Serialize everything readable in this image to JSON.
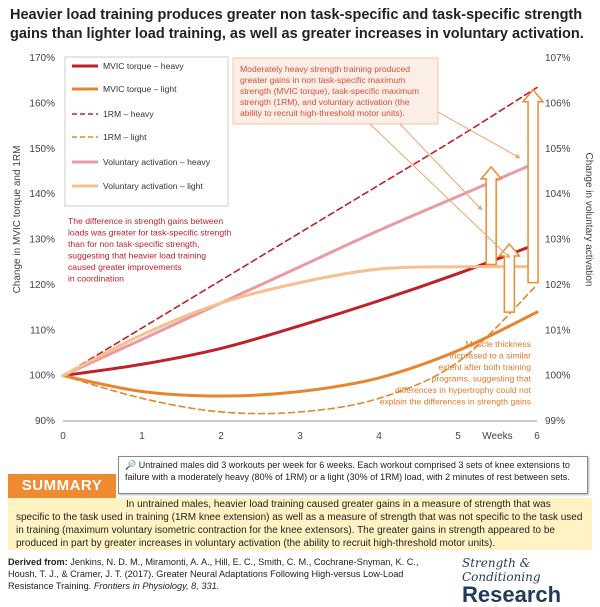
{
  "title": "Heavier load training produces greater non task-specific and task-specific strength gains than lighter load training, as well as greater increases in voluntary activation.",
  "chart_data": {
    "type": "line",
    "x_ticks": [
      "0",
      "1",
      "2",
      "3",
      "4",
      "5",
      "6"
    ],
    "xlabel_weeks": "Weeks",
    "y_left_label": "Change in MVIC torque and 1RM",
    "y_left_ticks": [
      "90%",
      "100%",
      "110%",
      "120%",
      "130%",
      "140%",
      "150%",
      "160%",
      "170%"
    ],
    "y_left_range": [
      90,
      170
    ],
    "y_right_label": "Change in voluntary activation",
    "y_right_ticks": [
      "99%",
      "100%",
      "101%",
      "102%",
      "103%",
      "104%",
      "105%",
      "106%",
      "107%"
    ],
    "y_right_range": [
      99,
      107
    ],
    "x_range": [
      0,
      6
    ],
    "series": [
      {
        "name": "MVIC torque – heavy",
        "color": "#c0202a",
        "dash": "solid",
        "axis": "left",
        "points": [
          [
            0,
            100
          ],
          [
            1,
            102.5
          ],
          [
            2,
            106
          ],
          [
            3,
            111
          ],
          [
            4,
            116.5
          ],
          [
            5,
            122.5
          ],
          [
            6,
            129
          ]
        ]
      },
      {
        "name": "MVIC torque – light",
        "color": "#e8852c",
        "dash": "solid",
        "axis": "left",
        "points": [
          [
            0,
            100
          ],
          [
            1,
            96.5
          ],
          [
            2,
            95.5
          ],
          [
            3,
            96.5
          ],
          [
            4,
            99.5
          ],
          [
            5,
            105.5
          ],
          [
            6,
            114
          ]
        ]
      },
      {
        "name": "1RM – heavy",
        "color": "#c0202a",
        "dash": "dashed",
        "axis": "left",
        "points": [
          [
            0,
            100
          ],
          [
            1,
            110.5
          ],
          [
            2,
            121
          ],
          [
            3,
            131.5
          ],
          [
            4,
            142
          ],
          [
            5,
            152.5
          ],
          [
            6,
            163.5
          ]
        ]
      },
      {
        "name": "1RM – light",
        "color": "#e8852c",
        "dash": "dashed",
        "axis": "left",
        "points": [
          [
            0,
            100
          ],
          [
            1,
            95
          ],
          [
            2,
            92
          ],
          [
            3,
            92
          ],
          [
            4,
            95
          ],
          [
            5,
            103
          ],
          [
            6,
            120
          ]
        ]
      },
      {
        "name": "Voluntary activation – heavy",
        "color": "#e99aa3",
        "dash": "solid",
        "axis": "right",
        "points": [
          [
            0,
            100
          ],
          [
            1,
            100.8
          ],
          [
            2,
            101.6
          ],
          [
            3,
            102.4
          ],
          [
            4,
            103.2
          ],
          [
            5,
            103.95
          ],
          [
            6,
            104.7
          ]
        ]
      },
      {
        "name": "Voluntary activation – light",
        "color": "#f5c08e",
        "dash": "solid",
        "axis": "right",
        "points": [
          [
            0,
            100
          ],
          [
            1,
            100.9
          ],
          [
            2,
            101.6
          ],
          [
            3,
            102.05
          ],
          [
            4,
            102.35
          ],
          [
            5,
            102.4
          ],
          [
            6,
            102.4
          ]
        ]
      }
    ],
    "annotations": {
      "top_box": "Moderately heavy strength training produced greater gains in non task-specific maximum strength (MVIC torque), task-specific maximum strength (1RM), and voluntary activation (the ability to recruit high-threshold motor units).",
      "left_text": [
        "The difference in strength gains between",
        "loads was greater for task-specific strength",
        "than for non task-specific strength,",
        "suggesting that heavier load training",
        "caused greater improvements",
        "in coordination"
      ],
      "right_text": [
        "Muscle thickness",
        "increased to a similar",
        "extent after both training",
        "programs, suggesting that",
        "differences in hypertrophy could not",
        "explain the differences in strength gains"
      ]
    },
    "grid": false,
    "legend_position": "top-left"
  },
  "summary": {
    "tag": "SUMMARY",
    "note": "Untrained males did 3 workouts per week for 6 weeks. Each workout comprised 3 sets of knee extensions to failure with a moderately heavy (80% of 1RM) or a light (30% of 1RM) load, with 2 minutes of rest between sets.",
    "text": "In untrained males, heavier load training caused greater gains in a measure of strength that was specific to the task used in training (1RM knee extension) as well as a measure of strength that was not specific to the task used in training (maximum voluntary isometric contraction for the knee extensors). The greater gains in strength appeared to be produced in part by greater increases in voluntary activation (the ability to recruit high-threshold motor units)."
  },
  "reference": {
    "label": "Derived from:",
    "text": "Jenkins, N. D. M., Miramonti, A. A., Hill, E. C., Smith, C. M., Cochrane-Snyman, K. C., Housh, T. J., & Cramer, J. T. (2017). Greater Neural Adaptations Following High-versus Low-Load Resistance Training.",
    "journal": "Frontiers in Physiology, 8, 331."
  },
  "logo": {
    "line1": "Strength & Conditioning",
    "line2": "Research"
  }
}
